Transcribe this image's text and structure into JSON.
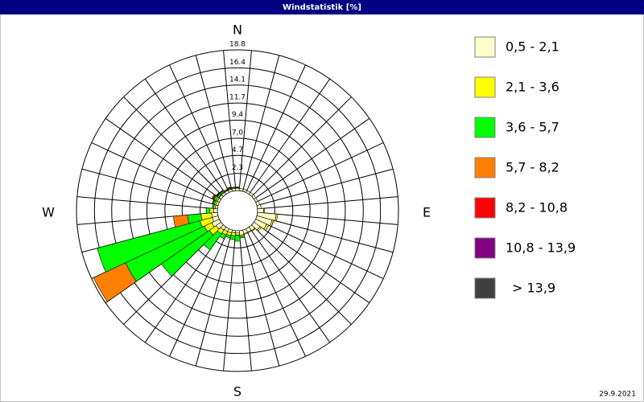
{
  "chart_data": {
    "type": "windrose",
    "title": "Windstatistik [%]",
    "directions": [
      0,
      10,
      20,
      30,
      40,
      50,
      60,
      70,
      80,
      90,
      100,
      110,
      120,
      130,
      140,
      150,
      160,
      170,
      180,
      190,
      200,
      210,
      220,
      230,
      240,
      250,
      260,
      270,
      280,
      290,
      300,
      310,
      320,
      330,
      340,
      350
    ],
    "cardinals": [
      "N",
      "E",
      "S",
      "W"
    ],
    "rlim": [
      0,
      18.8
    ],
    "rticks": [
      2.3,
      4.7,
      {
        "value": 7.0,
        "label": "7,0"
      },
      9.4,
      11.7,
      14.1,
      16.4,
      18.8
    ],
    "series": [
      {
        "name": "0,5 - 2,1",
        "color": "#ffffcc",
        "values": [
          0.3,
          0.3,
          0.3,
          0.3,
          0.3,
          0.3,
          0.3,
          0.4,
          0.5,
          0.8,
          2.5,
          2.1,
          1.6,
          1.0,
          0.6,
          0.5,
          0.5,
          0.6,
          0.3,
          0.3,
          0.4,
          0.4,
          0.5,
          0.8,
          1.1,
          0.8,
          0.8,
          0.5,
          0.3,
          0.3,
          0.3,
          0.3,
          0.3,
          0.3,
          0.3,
          0.3
        ]
      },
      {
        "name": "2,1 - 3,6",
        "color": "#ffff00",
        "values": [
          0.1,
          0,
          0,
          0,
          0,
          0,
          0,
          0,
          0,
          0.1,
          0.2,
          0.2,
          0.3,
          0.2,
          0.1,
          0.1,
          0.1,
          0.2,
          0.3,
          0.4,
          0.4,
          0.5,
          0.6,
          1.1,
          1.1,
          1.7,
          1.4,
          0.5,
          0.2,
          0.2,
          0.2,
          0.1,
          0.1,
          0.1,
          0.1,
          0.1
        ]
      },
      {
        "name": "3,6 - 5,7",
        "color": "#00ff00",
        "values": [
          0.1,
          0,
          0,
          0,
          0,
          0,
          0,
          0,
          0,
          0,
          0,
          0,
          0,
          0,
          0,
          0,
          0,
          0.2,
          0.8,
          0.5,
          0.3,
          0.6,
          2.6,
          7.8,
          11.6,
          14.2,
          1.8,
          0.5,
          0.2,
          0.2,
          0.3,
          0.2,
          0.2,
          0.1,
          0.1,
          0.1
        ]
      },
      {
        "name": "5,7 - 8,2",
        "color": "#ff8000",
        "values": [
          0,
          0,
          0,
          0,
          0,
          0,
          0,
          0,
          0,
          0,
          0,
          0,
          0,
          0,
          0,
          0,
          0,
          0,
          0,
          0,
          0,
          0,
          0,
          0,
          4.7,
          0,
          1.9,
          0,
          0,
          0,
          0.1,
          0,
          0,
          0,
          0,
          0
        ]
      },
      {
        "name": "8,2 - 10,8",
        "color": "#ff0000",
        "values": [
          0,
          0,
          0,
          0,
          0,
          0,
          0,
          0,
          0,
          0,
          0,
          0,
          0,
          0,
          0,
          0,
          0,
          0,
          0,
          0,
          0,
          0,
          0,
          0,
          0,
          0,
          0,
          0,
          0,
          0,
          0.2,
          0.1,
          0,
          0,
          0.1,
          0
        ]
      },
      {
        "name": "10,8 - 13,9",
        "color": "#800080",
        "values": [
          0,
          0,
          0,
          0,
          0,
          0,
          0,
          0,
          0,
          0,
          0,
          0,
          0,
          0,
          0,
          0,
          0,
          0,
          0,
          0,
          0,
          0,
          0,
          0,
          0,
          0,
          0,
          0,
          0,
          0,
          0,
          0.1,
          0.1,
          0,
          0,
          0
        ]
      },
      {
        "name": "> 13,9",
        "color": "#404040",
        "values": [
          0,
          0,
          0,
          0,
          0,
          0,
          0,
          0,
          0,
          0,
          0,
          0,
          0,
          0,
          0,
          0,
          0,
          0,
          0,
          0,
          0,
          0,
          0,
          0,
          0,
          0,
          0,
          0,
          0,
          0.1,
          0,
          0,
          0,
          0,
          0,
          0
        ]
      }
    ],
    "date": "29.9.2021"
  }
}
